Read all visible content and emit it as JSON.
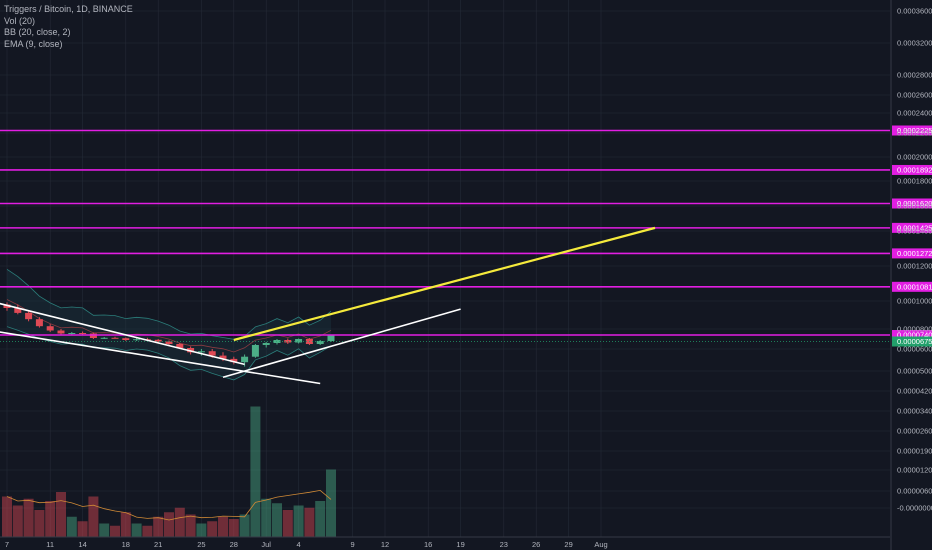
{
  "legend": {
    "title": "Triggers / Bitcoin, 1D, BINANCE",
    "vol": "Vol (20)",
    "bb": "BB (20, close, 2)",
    "ema": "EMA (9, close)"
  },
  "colors": {
    "background": "#131722",
    "grid": "#242a36",
    "up": "#4caf88",
    "down": "#e04a55",
    "level_line": "#e21ee2",
    "current_price": "#22a06b",
    "trend_white": "#ffffff",
    "trend_yellow": "#f5ea3c",
    "bb_upper": "#2b7d7a",
    "bb_basis": "#8a3a40",
    "vol_ma": "#d08a36"
  },
  "chart_data": {
    "type": "candlestick",
    "symbol": "Triggers / Bitcoin",
    "interval": "1D",
    "exchange": "BINANCE",
    "grid": true,
    "y_axis_position": "right",
    "y_ticks": [
      "0.0003600",
      "0.0003200",
      "0.0002800",
      "0.0002600",
      "0.0002400",
      "0.0002200",
      "0.0002000",
      "0.0001800",
      "0.0001600",
      "0.0001400",
      "0.0001200",
      "0.0001000",
      "0.0000800",
      "0.0000600",
      "0.0000500",
      "0.0000420",
      "0.0000340",
      "0.0000260",
      "0.0000190",
      "0.0000120",
      "0.0000060",
      "-0.0000000"
    ],
    "x_ticks": [
      {
        "label": "7",
        "x_index": 0
      },
      {
        "label": "11",
        "x_index": 4
      },
      {
        "label": "14",
        "x_index": 7
      },
      {
        "label": "18",
        "x_index": 11
      },
      {
        "label": "21",
        "x_index": 14
      },
      {
        "label": "25",
        "x_index": 18
      },
      {
        "label": "28",
        "x_index": 21
      },
      {
        "label": "Jul",
        "x_index": 24
      },
      {
        "label": "4",
        "x_index": 27
      },
      {
        "label": "9",
        "x_index": 32
      },
      {
        "label": "12",
        "x_index": 35
      },
      {
        "label": "16",
        "x_index": 39
      },
      {
        "label": "19",
        "x_index": 42
      },
      {
        "label": "23",
        "x_index": 46
      },
      {
        "label": "26",
        "x_index": 49
      },
      {
        "label": "29",
        "x_index": 52
      },
      {
        "label": "Aug",
        "x_index": 55
      }
    ],
    "horizontal_levels": [
      "0.0002225",
      "0.0001892",
      "0.0001620",
      "0.0001425",
      "0.0001272",
      "0.0001081",
      "0.0000740"
    ],
    "current_price": "0.0000675",
    "candles": [
      {
        "o": 9.75e-05,
        "h": 9.9e-05,
        "l": 9.3e-05,
        "c": 9.5e-05,
        "v": 90
      },
      {
        "o": 9.5e-05,
        "h": 9.75e-05,
        "l": 9.05e-05,
        "c": 9.15e-05,
        "v": 70
      },
      {
        "o": 9.15e-05,
        "h": 9.35e-05,
        "l": 8.55e-05,
        "c": 8.7e-05,
        "v": 85
      },
      {
        "o": 8.7e-05,
        "h": 8.85e-05,
        "l": 8.1e-05,
        "c": 8.2e-05,
        "v": 60
      },
      {
        "o": 8.2e-05,
        "h": 8.35e-05,
        "l": 7.7e-05,
        "c": 7.85e-05,
        "v": 80
      },
      {
        "o": 7.85e-05,
        "h": 8e-05,
        "l": 7.4e-05,
        "c": 7.55e-05,
        "v": 100
      },
      {
        "o": 7.55e-05,
        "h": 7.7e-05,
        "l": 7.45e-05,
        "c": 7.6e-05,
        "v": 45
      },
      {
        "o": 7.6e-05,
        "h": 7.75e-05,
        "l": 7.4e-05,
        "c": 7.55e-05,
        "v": 35
      },
      {
        "o": 7.55e-05,
        "h": 7.65e-05,
        "l": 7e-05,
        "c": 7.1e-05,
        "v": 90
      },
      {
        "o": 7.1e-05,
        "h": 7.2e-05,
        "l": 7e-05,
        "c": 7.12e-05,
        "v": 30
      },
      {
        "o": 7.12e-05,
        "h": 7.22e-05,
        "l": 7.05e-05,
        "c": 7.08e-05,
        "v": 25
      },
      {
        "o": 7.08e-05,
        "h": 7.15e-05,
        "l": 6.8e-05,
        "c": 6.9e-05,
        "v": 55
      },
      {
        "o": 6.9e-05,
        "h": 7.1e-05,
        "l": 6.8e-05,
        "c": 6.98e-05,
        "v": 30
      },
      {
        "o": 6.98e-05,
        "h": 7.12e-05,
        "l": 6.85e-05,
        "c": 6.92e-05,
        "v": 25
      },
      {
        "o": 6.92e-05,
        "h": 7e-05,
        "l": 6.65e-05,
        "c": 6.75e-05,
        "v": 45
      },
      {
        "o": 6.75e-05,
        "h": 6.85e-05,
        "l": 6.4e-05,
        "c": 6.5e-05,
        "v": 55
      },
      {
        "o": 6.5e-05,
        "h": 6.6e-05,
        "l": 6e-05,
        "c": 6.1e-05,
        "v": 65
      },
      {
        "o": 6.1e-05,
        "h": 6.25e-05,
        "l": 5.75e-05,
        "c": 5.85e-05,
        "v": 50
      },
      {
        "o": 5.85e-05,
        "h": 6e-05,
        "l": 5.7e-05,
        "c": 5.9e-05,
        "v": 30
      },
      {
        "o": 5.9e-05,
        "h": 6e-05,
        "l": 5.6e-05,
        "c": 5.7e-05,
        "v": 35
      },
      {
        "o": 5.7e-05,
        "h": 5.85e-05,
        "l": 5.45e-05,
        "c": 5.55e-05,
        "v": 45
      },
      {
        "o": 5.55e-05,
        "h": 5.65e-05,
        "l": 5.3e-05,
        "c": 5.4e-05,
        "v": 40
      },
      {
        "o": 5.4e-05,
        "h": 5.75e-05,
        "l": 5.2e-05,
        "c": 5.65e-05,
        "v": 50
      },
      {
        "o": 5.65e-05,
        "h": 6.5e-05,
        "l": 5.6e-05,
        "c": 6.4e-05,
        "v": 290
      },
      {
        "o": 6.4e-05,
        "h": 6.7e-05,
        "l": 6.15e-05,
        "c": 6.6e-05,
        "v": 85
      },
      {
        "o": 6.6e-05,
        "h": 7e-05,
        "l": 6.45e-05,
        "c": 6.9e-05,
        "v": 75
      },
      {
        "o": 6.9e-05,
        "h": 7.05e-05,
        "l": 6.5e-05,
        "c": 6.65e-05,
        "v": 60
      },
      {
        "o": 6.65e-05,
        "h": 7.05e-05,
        "l": 6.55e-05,
        "c": 7e-05,
        "v": 70
      },
      {
        "o": 7e-05,
        "h": 7.1e-05,
        "l": 6.4e-05,
        "c": 6.5e-05,
        "v": 65
      },
      {
        "o": 6.5e-05,
        "h": 6.9e-05,
        "l": 6.4e-05,
        "c": 6.8e-05,
        "v": 80
      },
      {
        "o": 6.8e-05,
        "h": 7.45e-05,
        "l": 6.7e-05,
        "c": 7.35e-05,
        "v": 150
      }
    ],
    "trendlines": [
      {
        "color": "white",
        "p1": {
          "x_index": -1,
          "y": 9.88e-05
        },
        "p2": {
          "x_index": 22,
          "y": 5.3e-05
        }
      },
      {
        "color": "white",
        "p1": {
          "x_index": -1,
          "y": 7.75e-05
        },
        "p2": {
          "x_index": 29,
          "y": 4.5e-05
        }
      },
      {
        "color": "white",
        "p1": {
          "x_index": 20,
          "y": 4.75e-05
        },
        "p2": {
          "x_index": 42,
          "y": 9.42e-05
        }
      },
      {
        "color": "yellow",
        "p1": {
          "x_index": 21,
          "y": 6.9e-05
        },
        "p2": {
          "x_index": 60,
          "y": 0.0001425
        }
      }
    ]
  }
}
